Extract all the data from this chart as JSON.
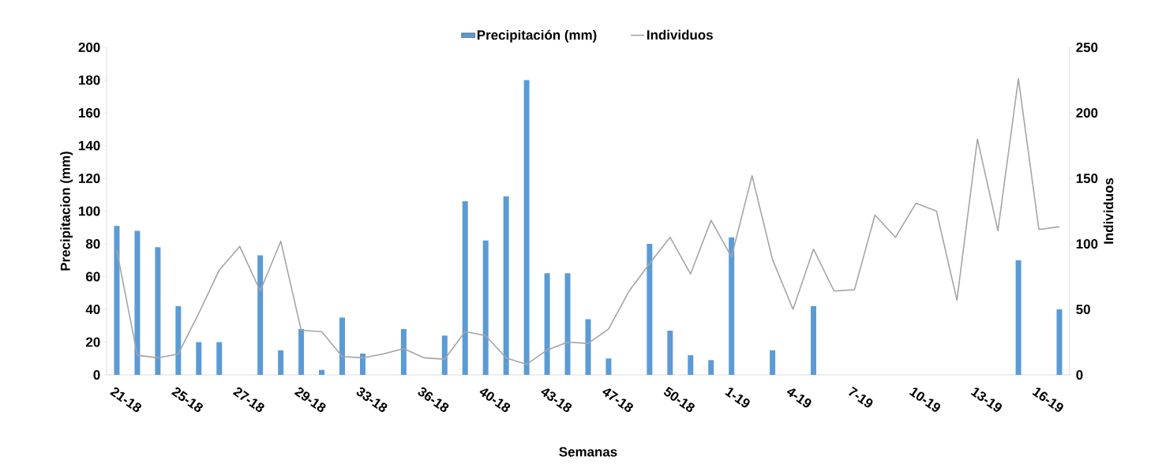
{
  "chart_data": {
    "type": "bar",
    "xlabel": "Semanas",
    "ylabel": "Precipitacion (mm)",
    "y2label": "Individuos",
    "categories": [
      "21-18",
      null,
      null,
      "25-18",
      null,
      null,
      "27-18",
      null,
      null,
      "29-18",
      null,
      null,
      "33-18",
      null,
      null,
      "36-18",
      null,
      null,
      "40-18",
      null,
      null,
      "43-18",
      null,
      null,
      "47-18",
      null,
      null,
      "50-18",
      null,
      null,
      "1-19",
      null,
      null,
      "4-19",
      null,
      null,
      "7-19",
      null,
      null,
      "10-19",
      null,
      null,
      "13-19",
      null,
      null,
      "16-19",
      null
    ],
    "series": [
      {
        "name": "Precipitación (mm)",
        "color": "#5b9bd5",
        "values": [
          91,
          88,
          78,
          42,
          20,
          20,
          0,
          73,
          15,
          28,
          3,
          35,
          13,
          0,
          28,
          0,
          24,
          106,
          82,
          109,
          180,
          62,
          62,
          34,
          10,
          0,
          80,
          27,
          12,
          9,
          84,
          0,
          15,
          0,
          42,
          0,
          0,
          0,
          0,
          0,
          0,
          0,
          0,
          0,
          70,
          0,
          40
        ]
      },
      {
        "name": "Individuos",
        "type": "line",
        "axis": "y2",
        "color": "#a5a5a5",
        "values": [
          95,
          15,
          13,
          16,
          47,
          80,
          98,
          64,
          102,
          34,
          33,
          14,
          13,
          16,
          20,
          13,
          12,
          33,
          30,
          13,
          8,
          19,
          25,
          24,
          35,
          64,
          85,
          105,
          77,
          118,
          90,
          152,
          88,
          50,
          96,
          64,
          65,
          122,
          105,
          131,
          125,
          57,
          180,
          110,
          226,
          111,
          113
        ]
      }
    ],
    "ylim": [
      0,
      200
    ],
    "yticks": [
      0,
      20,
      40,
      60,
      80,
      100,
      120,
      140,
      160,
      180,
      200
    ],
    "y2lim": [
      0,
      250
    ],
    "y2ticks": [
      0,
      50,
      100,
      150,
      200,
      250
    ],
    "legend": "top"
  }
}
